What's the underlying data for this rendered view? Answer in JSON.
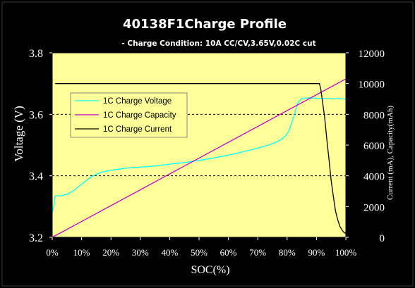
{
  "chart_data": {
    "type": "line",
    "title": "40138F1Charge Profile",
    "subtitle": "- Charge Condition:  10A CC/CV,3.65V,0.02C cut",
    "xlabel": "SOC(%)",
    "ylabel_left": "Voltage (V)",
    "ylabel_right": "Current (mA), Capacity(mAh)",
    "x_ticks": [
      "0%",
      "10%",
      "20%",
      "30%",
      "40%",
      "50%",
      "60%",
      "70%",
      "80%",
      "90%",
      "100%"
    ],
    "y_left_ticks": [
      "3.2",
      "3.4",
      "3.6",
      "3.8"
    ],
    "y_right_ticks": [
      "0",
      "2000",
      "4000",
      "6000",
      "8000",
      "10000",
      "12000"
    ],
    "xlim": [
      0,
      100
    ],
    "ylim_left": [
      3.2,
      3.8
    ],
    "ylim_right": [
      0,
      12000
    ],
    "legend_position": "upper-left",
    "grid": "horizontal dashed at 3.4 and 3.6 V",
    "colors": {
      "plot_background": "#ffff99",
      "voltage": "#00ffff",
      "capacity": "#cc00cc",
      "current": "#000000"
    },
    "series": [
      {
        "name": "1C Charge Voltage",
        "axis": "left",
        "x": [
          0,
          0.5,
          1,
          2,
          3,
          5,
          7,
          9,
          11,
          13,
          15,
          17,
          20,
          25,
          30,
          35,
          40,
          45,
          50,
          55,
          60,
          65,
          70,
          73,
          76,
          78,
          79.5,
          80.5,
          81.5,
          82.5,
          83.5,
          85,
          88,
          90,
          93,
          96,
          98,
          100
        ],
        "y": [
          3.28,
          3.3,
          3.335,
          3.335,
          3.335,
          3.34,
          3.35,
          3.365,
          3.38,
          3.395,
          3.405,
          3.412,
          3.418,
          3.425,
          3.428,
          3.432,
          3.438,
          3.443,
          3.45,
          3.458,
          3.467,
          3.478,
          3.49,
          3.498,
          3.508,
          3.518,
          3.53,
          3.545,
          3.57,
          3.6,
          3.635,
          3.652,
          3.654,
          3.652,
          3.652,
          3.65,
          3.652,
          3.648
        ]
      },
      {
        "name": "1C Charge Capacity",
        "axis": "right",
        "x": [
          0,
          100
        ],
        "y": [
          0,
          10300
        ]
      },
      {
        "name": "1C Charge Current",
        "axis": "right",
        "x": [
          1,
          91,
          91.5,
          92,
          92.8,
          93.5,
          94.3,
          95,
          95.8,
          96.5,
          97.3,
          98,
          98.8,
          99.5,
          100
        ],
        "y": [
          10000,
          10000,
          9600,
          8900,
          7800,
          6400,
          5000,
          3700,
          2600,
          1700,
          1100,
          700,
          450,
          300,
          250
        ]
      }
    ]
  }
}
